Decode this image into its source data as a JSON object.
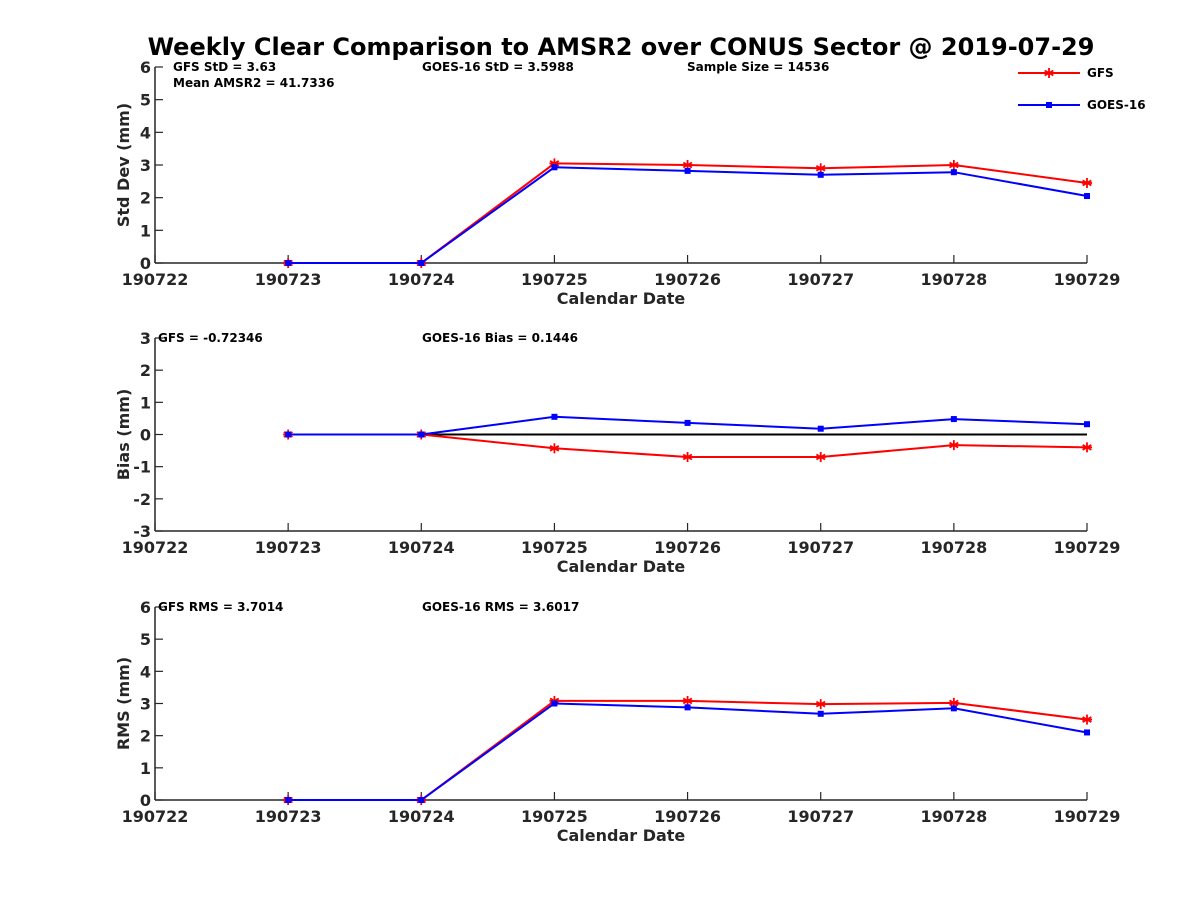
{
  "chart_data": {
    "title": "Weekly Clear Comparison to AMSR2 over CONUS Sector @ 2019-07-29",
    "legend": {
      "position": "top-right",
      "entries": [
        {
          "name": "GFS",
          "color": "#ff0000",
          "marker": "asterisk"
        },
        {
          "name": "GOES-16",
          "color": "#0000ff",
          "marker": "square"
        }
      ]
    },
    "panels": [
      {
        "type": "line",
        "ylabel": "Std Dev (mm)",
        "xlabel": "Calendar Date",
        "ylim": [
          0,
          6
        ],
        "yticks": [
          "0",
          "1",
          "2",
          "3",
          "4",
          "5",
          "6"
        ],
        "xticks": [
          "190722",
          "190723",
          "190724",
          "190725",
          "190726",
          "190727",
          "190728",
          "190729"
        ],
        "zero_line": false,
        "annotations": [
          "GFS StD = 3.63",
          "Mean AMSR2 = 41.7336",
          "GOES-16 StD = 3.5988",
          "Sample Size = 14536"
        ],
        "x": [
          "190723",
          "190724",
          "190725",
          "190726",
          "190727",
          "190728",
          "190729"
        ],
        "series": [
          {
            "name": "GFS",
            "color": "#ff0000",
            "values": [
              0,
              0,
              3.05,
              3.0,
              2.9,
              3.0,
              2.45
            ]
          },
          {
            "name": "GOES-16",
            "color": "#0000ff",
            "values": [
              0,
              0,
              2.93,
              2.82,
              2.7,
              2.78,
              2.05
            ]
          }
        ]
      },
      {
        "type": "line",
        "ylabel": "Bias (mm)",
        "xlabel": "Calendar Date",
        "ylim": [
          -3,
          3
        ],
        "yticks": [
          "-3",
          "-2",
          "-1",
          "0",
          "1",
          "2",
          "3"
        ],
        "xticks": [
          "190722",
          "190723",
          "190724",
          "190725",
          "190726",
          "190727",
          "190728",
          "190729"
        ],
        "zero_line": true,
        "annotations": [
          "GFS = -0.72346",
          "GOES-16 Bias  = 0.1446"
        ],
        "x": [
          "190723",
          "190724",
          "190725",
          "190726",
          "190727",
          "190728",
          "190729"
        ],
        "series": [
          {
            "name": "GFS",
            "color": "#ff0000",
            "values": [
              0,
              0,
              -0.43,
              -0.7,
              -0.7,
              -0.33,
              -0.4
            ]
          },
          {
            "name": "GOES-16",
            "color": "#0000ff",
            "values": [
              0,
              0,
              0.55,
              0.36,
              0.18,
              0.48,
              0.32
            ]
          }
        ]
      },
      {
        "type": "line",
        "ylabel": "RMS (mm)",
        "xlabel": "Calendar Date",
        "ylim": [
          0,
          6
        ],
        "yticks": [
          "0",
          "1",
          "2",
          "3",
          "4",
          "5",
          "6"
        ],
        "xticks": [
          "190722",
          "190723",
          "190724",
          "190725",
          "190726",
          "190727",
          "190728",
          "190729"
        ],
        "zero_line": false,
        "annotations": [
          "GFS RMS = 3.7014",
          "GOES-16 RMS = 3.6017"
        ],
        "x": [
          "190723",
          "190724",
          "190725",
          "190726",
          "190727",
          "190728",
          "190729"
        ],
        "series": [
          {
            "name": "GFS",
            "color": "#ff0000",
            "values": [
              0,
              0,
              3.08,
              3.08,
              2.98,
              3.02,
              2.5
            ]
          },
          {
            "name": "GOES-16",
            "color": "#0000ff",
            "values": [
              0,
              0,
              3.0,
              2.88,
              2.68,
              2.85,
              2.1
            ]
          }
        ]
      }
    ]
  }
}
